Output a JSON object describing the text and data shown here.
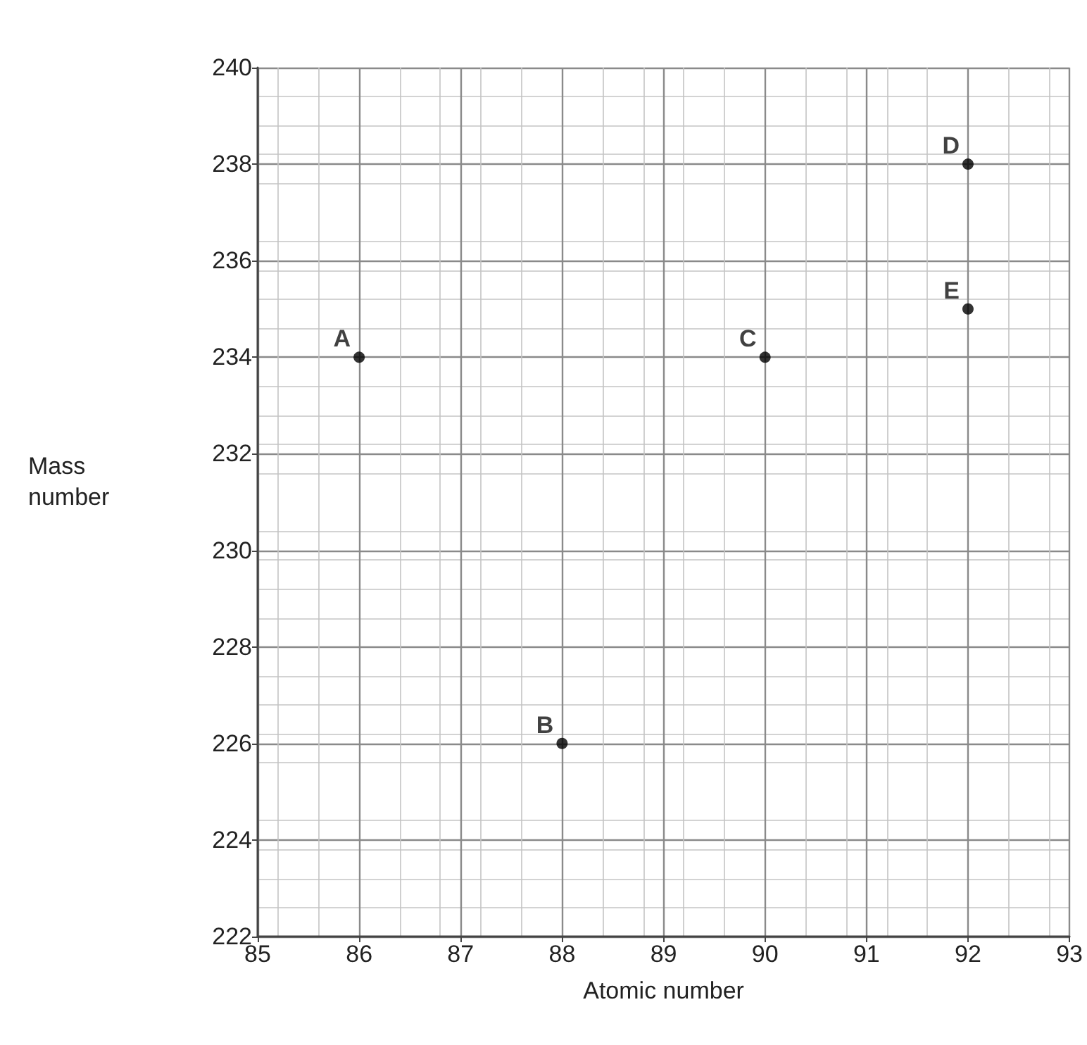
{
  "chart_data": {
    "type": "scatter",
    "xlabel": "Atomic number",
    "ylabel": "Mass number",
    "x": [
      86,
      88,
      90,
      92,
      92
    ],
    "series": [
      {
        "color": "#000000",
        "values": [
          234,
          226,
          234,
          238,
          235
        ]
      }
    ],
    "annotations": [
      {
        "text": "A",
        "x": 86,
        "y": 234
      },
      {
        "text": "B",
        "x": 88,
        "y": 226
      },
      {
        "text": "C",
        "x": 90,
        "y": 234
      },
      {
        "text": "D",
        "x": 92,
        "y": 238
      },
      {
        "text": "E",
        "x": 92,
        "y": 235
      }
    ],
    "xlim": [
      85,
      93
    ],
    "xticks": [
      85,
      86,
      87,
      88,
      89,
      90,
      91,
      92,
      93
    ],
    "ylim": [
      222,
      240
    ],
    "yticks": [
      222,
      224,
      226,
      228,
      230,
      232,
      234,
      236,
      238,
      240
    ],
    "grid": true,
    "marker": "circle"
  }
}
